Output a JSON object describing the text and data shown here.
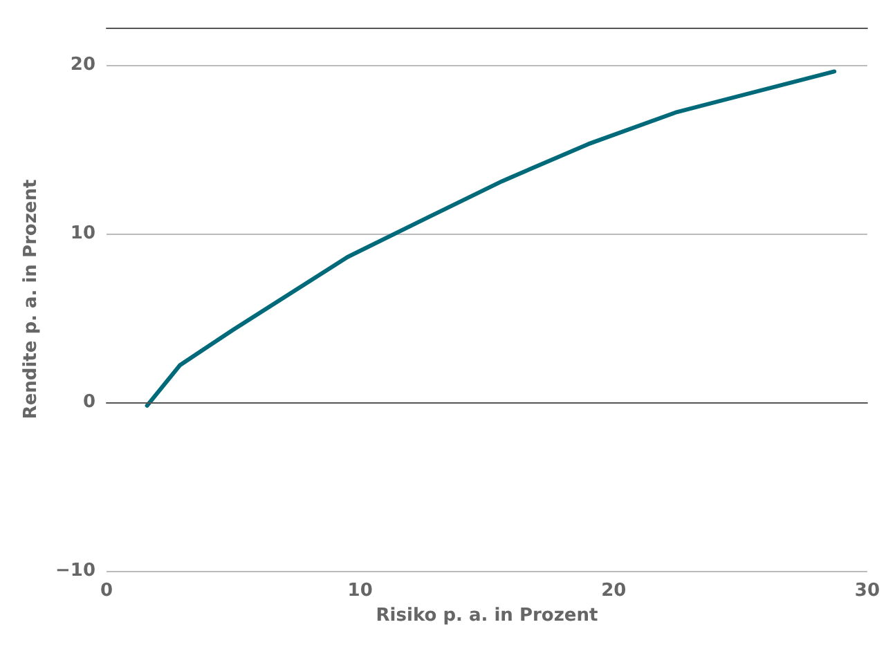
{
  "chart_data": {
    "type": "line",
    "xlabel": "Risiko p. a. in Prozent",
    "ylabel": "Rendite p. a. in Prozent",
    "x": [
      1.6,
      2.9,
      5.0,
      9.5,
      12.6,
      15.6,
      19.0,
      22.5,
      28.7
    ],
    "series": [
      {
        "color": "#00697a",
        "values": [
          -0.2,
          2.2,
          4.3,
          8.6,
          10.9,
          13.1,
          15.3,
          17.2,
          19.6
        ]
      }
    ],
    "xlim": [
      0,
      30
    ],
    "xticks": [
      0,
      10,
      20,
      30
    ],
    "ylim": [
      -10,
      22.2
    ],
    "yticks": [
      -10,
      0,
      10,
      20
    ],
    "grid": "y",
    "marker": "none",
    "line_style": "solid"
  }
}
